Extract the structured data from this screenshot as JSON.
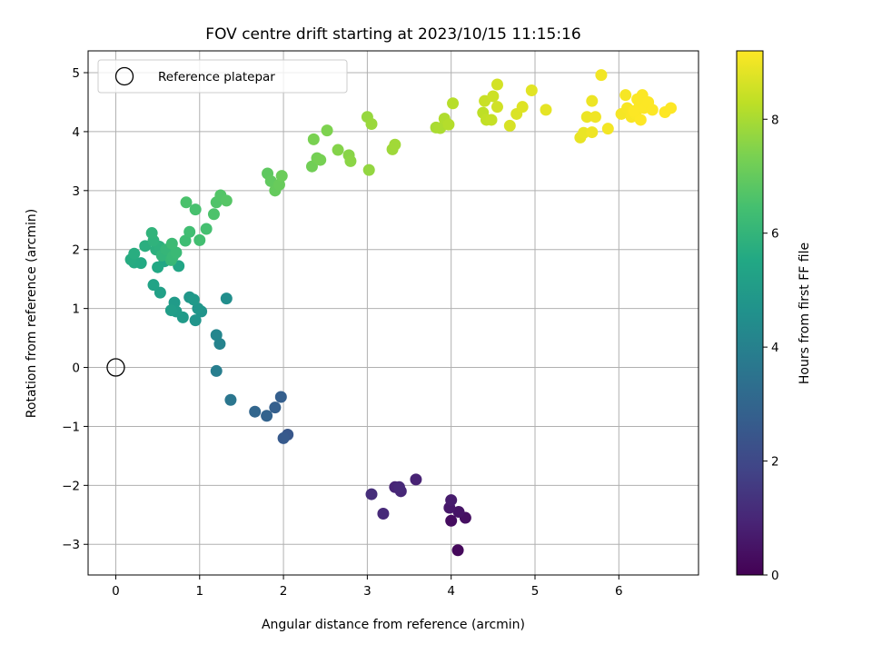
{
  "chart_data": {
    "type": "scatter",
    "title": "FOV centre drift starting at 2023/10/15 11:15:16",
    "xlabel": "Angular distance from reference (arcmin)",
    "ylabel": "Rotation from reference (arcmin)",
    "xlim": [
      -0.33,
      6.95
    ],
    "ylim": [
      -3.52,
      5.37
    ],
    "xticks": [
      0,
      1,
      2,
      3,
      4,
      5,
      6
    ],
    "yticks": [
      -3,
      -2,
      -1,
      0,
      1,
      2,
      3,
      4,
      5
    ],
    "grid": true,
    "legend": {
      "placement": "top-left",
      "label": "Reference platepar"
    },
    "reference_point": {
      "x": 0,
      "y": 0
    },
    "colorbar": {
      "label": "Hours from first FF file",
      "colormap": "viridis",
      "range": [
        0,
        9.2
      ],
      "ticks": [
        0,
        2,
        4,
        6,
        8
      ]
    },
    "series": [
      {
        "points": [
          [
            4.08,
            -3.1,
            0.2
          ],
          [
            4.0,
            -2.6,
            0.3
          ],
          [
            4.17,
            -2.55,
            0.4
          ],
          [
            4.09,
            -2.45,
            0.5
          ],
          [
            3.98,
            -2.38,
            0.6
          ],
          [
            4.0,
            -2.25,
            0.7
          ],
          [
            3.58,
            -1.9,
            0.9
          ],
          [
            3.33,
            -2.03,
            0.95
          ],
          [
            3.4,
            -2.1,
            1.0
          ],
          [
            3.38,
            -2.03,
            1.05
          ],
          [
            3.19,
            -2.48,
            1.1
          ],
          [
            3.05,
            -2.15,
            1.2
          ],
          [
            2.05,
            -1.14,
            2.5
          ],
          [
            2.0,
            -1.2,
            2.6
          ],
          [
            1.97,
            -0.5,
            2.75
          ],
          [
            1.9,
            -0.68,
            2.8
          ],
          [
            1.8,
            -0.82,
            2.9
          ],
          [
            1.66,
            -0.75,
            3.0
          ],
          [
            1.37,
            -0.55,
            3.6
          ],
          [
            1.2,
            -0.06,
            3.9
          ],
          [
            1.24,
            0.4,
            4.1
          ],
          [
            1.2,
            0.55,
            4.2
          ],
          [
            1.32,
            1.17,
            4.5
          ],
          [
            1.02,
            0.95,
            4.7
          ],
          [
            0.95,
            0.8,
            4.75
          ],
          [
            0.98,
            1.0,
            4.8
          ],
          [
            0.88,
            1.19,
            4.85
          ],
          [
            0.93,
            1.15,
            4.9
          ],
          [
            0.8,
            0.85,
            4.95
          ],
          [
            0.7,
            1.1,
            5.0
          ],
          [
            0.72,
            0.95,
            5.05
          ],
          [
            0.66,
            0.97,
            5.1
          ],
          [
            0.53,
            1.27,
            5.2
          ],
          [
            0.45,
            1.4,
            5.3
          ],
          [
            0.75,
            1.72,
            5.4
          ],
          [
            0.58,
            1.8,
            5.45
          ],
          [
            0.5,
            1.7,
            5.5
          ],
          [
            0.3,
            1.77,
            5.55
          ],
          [
            0.22,
            1.78,
            5.6
          ],
          [
            0.18,
            1.83,
            5.65
          ],
          [
            0.22,
            1.93,
            5.7
          ],
          [
            0.35,
            2.06,
            5.75
          ],
          [
            0.48,
            2.0,
            5.8
          ],
          [
            0.52,
            2.05,
            5.85
          ],
          [
            0.45,
            2.15,
            5.9
          ],
          [
            0.43,
            2.28,
            5.95
          ],
          [
            0.55,
            1.9,
            6.0
          ],
          [
            0.6,
            2.0,
            6.05
          ],
          [
            0.66,
            1.82,
            6.1
          ],
          [
            0.68,
            1.88,
            6.15
          ],
          [
            0.72,
            1.95,
            6.2
          ],
          [
            0.67,
            2.1,
            6.25
          ],
          [
            0.83,
            2.15,
            6.3
          ],
          [
            0.88,
            2.3,
            6.35
          ],
          [
            1.0,
            2.16,
            6.4
          ],
          [
            1.08,
            2.35,
            6.45
          ],
          [
            0.95,
            2.68,
            6.5
          ],
          [
            0.84,
            2.8,
            6.55
          ],
          [
            1.17,
            2.6,
            6.6
          ],
          [
            1.2,
            2.8,
            6.65
          ],
          [
            1.25,
            2.92,
            6.7
          ],
          [
            1.32,
            2.83,
            6.75
          ],
          [
            1.81,
            3.29,
            6.9
          ],
          [
            1.85,
            3.16,
            6.95
          ],
          [
            1.9,
            3.0,
            7.0
          ],
          [
            1.95,
            3.1,
            7.05
          ],
          [
            1.98,
            3.25,
            7.1
          ],
          [
            2.34,
            3.41,
            7.2
          ],
          [
            2.4,
            3.55,
            7.25
          ],
          [
            2.44,
            3.52,
            7.3
          ],
          [
            2.36,
            3.87,
            7.35
          ],
          [
            2.52,
            4.02,
            7.4
          ],
          [
            2.65,
            3.69,
            7.5
          ],
          [
            2.78,
            3.6,
            7.55
          ],
          [
            2.8,
            3.5,
            7.6
          ],
          [
            3.02,
            3.35,
            7.7
          ],
          [
            3.0,
            4.25,
            7.75
          ],
          [
            3.05,
            4.13,
            7.8
          ],
          [
            3.3,
            3.7,
            7.85
          ],
          [
            3.33,
            3.78,
            7.9
          ],
          [
            3.82,
            4.07,
            8.0
          ],
          [
            3.87,
            4.06,
            8.05
          ],
          [
            3.92,
            4.22,
            8.1
          ],
          [
            3.97,
            4.12,
            8.15
          ],
          [
            4.02,
            4.48,
            8.2
          ],
          [
            4.38,
            4.32,
            8.3
          ],
          [
            4.42,
            4.2,
            8.35
          ],
          [
            4.48,
            4.2,
            8.4
          ],
          [
            4.4,
            4.52,
            8.45
          ],
          [
            4.5,
            4.6,
            8.5
          ],
          [
            4.55,
            4.42,
            8.55
          ],
          [
            4.55,
            4.8,
            8.6
          ],
          [
            4.7,
            4.1,
            8.65
          ],
          [
            4.78,
            4.3,
            8.7
          ],
          [
            4.85,
            4.42,
            8.75
          ],
          [
            4.96,
            4.7,
            8.8
          ],
          [
            5.13,
            4.37,
            8.85
          ],
          [
            5.54,
            3.9,
            8.9
          ],
          [
            5.58,
            3.98,
            8.92
          ],
          [
            5.62,
            4.25,
            8.95
          ],
          [
            5.68,
            4.52,
            8.97
          ],
          [
            5.68,
            3.99,
            9.0
          ],
          [
            5.72,
            4.25,
            9.02
          ],
          [
            5.79,
            4.96,
            9.04
          ],
          [
            5.87,
            4.05,
            9.06
          ],
          [
            6.03,
            4.3,
            9.08
          ],
          [
            6.08,
            4.62,
            9.1
          ],
          [
            6.1,
            4.4,
            9.12
          ],
          [
            6.15,
            4.25,
            9.14
          ],
          [
            6.2,
            4.3,
            9.15
          ],
          [
            6.25,
            4.45,
            9.16
          ],
          [
            6.28,
            4.62,
            9.17
          ],
          [
            6.3,
            4.4,
            9.18
          ],
          [
            6.35,
            4.5,
            9.19
          ],
          [
            6.4,
            4.37,
            9.19
          ],
          [
            6.55,
            4.33,
            9.2
          ],
          [
            6.62,
            4.4,
            9.2
          ],
          [
            6.26,
            4.2,
            9.2
          ],
          [
            6.18,
            4.35,
            9.18
          ],
          [
            6.22,
            4.55,
            9.17
          ]
        ]
      }
    ]
  }
}
